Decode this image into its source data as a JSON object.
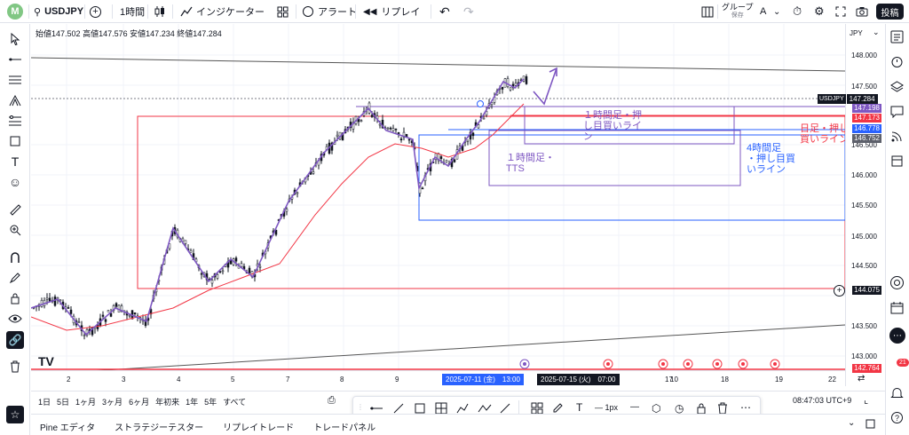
{
  "topbar": {
    "logo": "M",
    "symbol": "USDJPY",
    "interval": "1時間",
    "indicators_label": "インジケーター",
    "alert_label": "アラート",
    "replay_label": "リプレイ",
    "group_label": "グループ",
    "group_sub": "保存",
    "group_letter": "A",
    "login_label": "投稿"
  },
  "ohlc": {
    "open_label": "始値",
    "open": "147.502",
    "high_label": "高値",
    "high": "147.576",
    "low_label": "安値",
    "low": "147.234",
    "close_label": "終値",
    "close": "147.284"
  },
  "price_scale": {
    "currency": "JPY",
    "ticks": [
      "148.000",
      "147.500",
      "146.500",
      "146.000",
      "145.500",
      "145.000",
      "144.500",
      "143.500",
      "143.000"
    ],
    "labels": [
      {
        "name": "USDJPY",
        "value": "147.284",
        "color": "#131722"
      },
      {
        "value": "147.198",
        "color": "#7e57c2"
      },
      {
        "value": "147.173",
        "color": "#f23645"
      },
      {
        "value": "146.778",
        "color": "#2962ff"
      },
      {
        "value": "146.752",
        "color": "#5d606b"
      },
      {
        "value": "144.075",
        "color": "#131722"
      },
      {
        "value": "142.764",
        "color": "#f23645"
      }
    ]
  },
  "time_scale": {
    "ticks": [
      "2",
      "3",
      "4",
      "5",
      "7",
      "8",
      "9",
      "10",
      "17",
      "18",
      "19",
      "22"
    ],
    "highlight1": "2025-07-11 (金)　13:00",
    "highlight2": "2025-07-15 (火)　07:00"
  },
  "annotations": {
    "a1": "１時間足・押",
    "a1b": "し目買いライ",
    "a1c": "ン",
    "a2": "１時間足・",
    "a2b": "TTS",
    "a3": "日足・押し",
    "a3b": "買いライン",
    "a4": "4時間足",
    "a4b": "・押し目買",
    "a4c": "いライン",
    "watermark": "TV"
  },
  "bottombar": {
    "ranges": [
      "1日",
      "5日",
      "1ヶ月",
      "3ヶ月",
      "6ヶ月",
      "年初来",
      "1年",
      "5年",
      "すべて"
    ],
    "clock": "08:47:03 UTC+9",
    "stroke": "1px"
  },
  "panelbar": {
    "tabs": [
      "Pine エディタ",
      "ストラテジーテスター",
      "リプレイトレード",
      "トレードパネル"
    ]
  },
  "right_toolbar": {
    "badge": "21"
  }
}
